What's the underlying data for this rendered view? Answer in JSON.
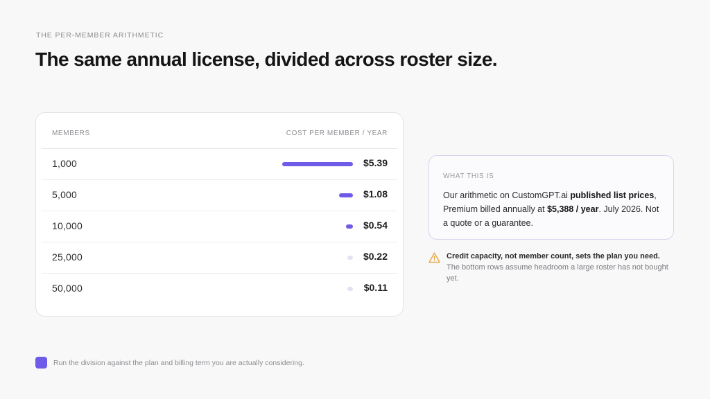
{
  "header": {
    "eyebrow": "THE PER-MEMBER ARITHMETIC",
    "title": "The same annual license, divided across roster size."
  },
  "table": {
    "col_members": "MEMBERS",
    "col_cost": "COST PER MEMBER / YEAR",
    "rows": [
      {
        "members": "1,000",
        "price": "$5.39",
        "value": 5.39
      },
      {
        "members": "5,000",
        "price": "$1.08",
        "value": 1.08
      },
      {
        "members": "10,000",
        "price": "$0.54",
        "value": 0.54
      },
      {
        "members": "25,000",
        "price": "$0.22",
        "value": 0.22
      },
      {
        "members": "50,000",
        "price": "$0.11",
        "value": 0.11
      }
    ]
  },
  "note": {
    "label": "WHAT THIS IS",
    "t1": "Our arithmetic on CustomGPT.ai ",
    "b1": "published list prices",
    "t2": ", Premium billed annually at ",
    "b2": "$5,388 / year",
    "t3": ". July 2026. Not a quote or a guarantee."
  },
  "warning": {
    "bold": "Credit capacity, not member count, sets the plan you need.",
    "rest": " The bottom rows assume headroom a large roster has not bought yet."
  },
  "footer": {
    "text": "Run the division against the plan and billing term you are actually considering."
  },
  "colors": {
    "accent": "#6e5ce8",
    "accent_faint": "#e4e1f7",
    "warning": "#e8a33a"
  }
}
